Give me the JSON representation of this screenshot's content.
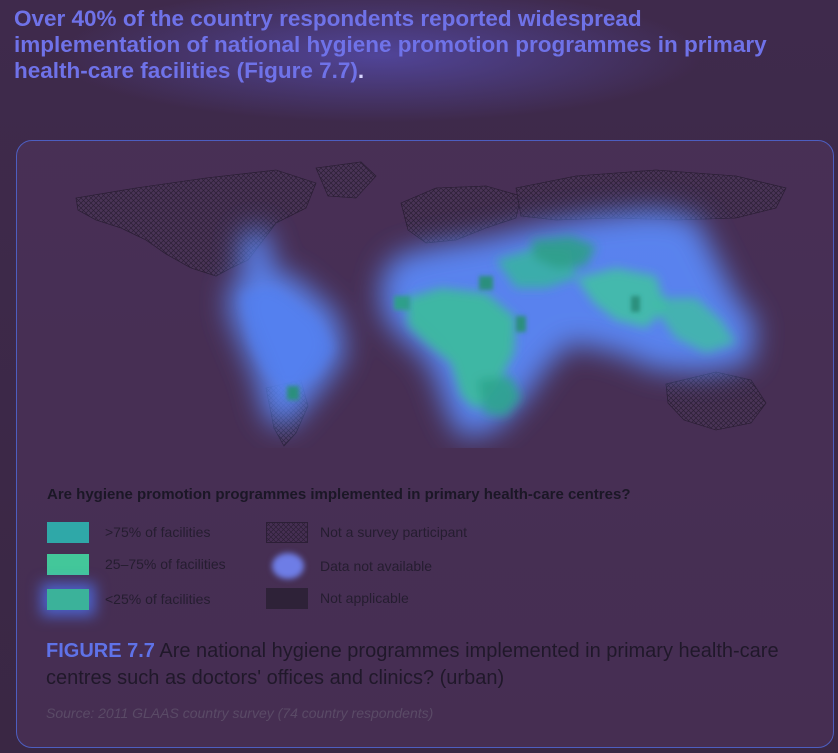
{
  "headline": {
    "text": "Over 40% of the country respondents reported widespread implementation of national hygiene promotion programmes in primary health-care facilities (Figure 7.7)",
    "period": "."
  },
  "legend": {
    "title": "Are hygiene promotion programmes implemented in primary health-care centres?",
    "items": [
      {
        "label": ">75% of facilities",
        "color": "#2fa8a8",
        "icon": "solid-swatch"
      },
      {
        "label": "25–75% of facilities",
        "color": "#43c79a",
        "icon": "solid-swatch"
      },
      {
        "label": "<25% of facilities",
        "color": "#3bb29a",
        "icon": "solid-swatch"
      },
      {
        "label": "Not a survey participant",
        "color": "#40304d",
        "icon": "crosshatch-swatch"
      },
      {
        "label": "Data not available",
        "color": "#6e7de6",
        "icon": "dot-swatch"
      },
      {
        "label": "Not applicable",
        "color": "#2e2238",
        "icon": "solid-swatch"
      }
    ]
  },
  "figure": {
    "id": "FIGURE 7.7",
    "caption": "Are national hygiene programmes implemented in primary health-care centres such as doctors' offices and clinics? (urban)",
    "source": "Source: 2011 GLAAS country survey (74 country respondents)"
  },
  "colors": {
    "background": "#3b2847",
    "accent": "#6f72e8",
    "map_land": "#4a3457",
    "highlight": "#5fa4ff",
    "data_green": "#3fc49a"
  }
}
